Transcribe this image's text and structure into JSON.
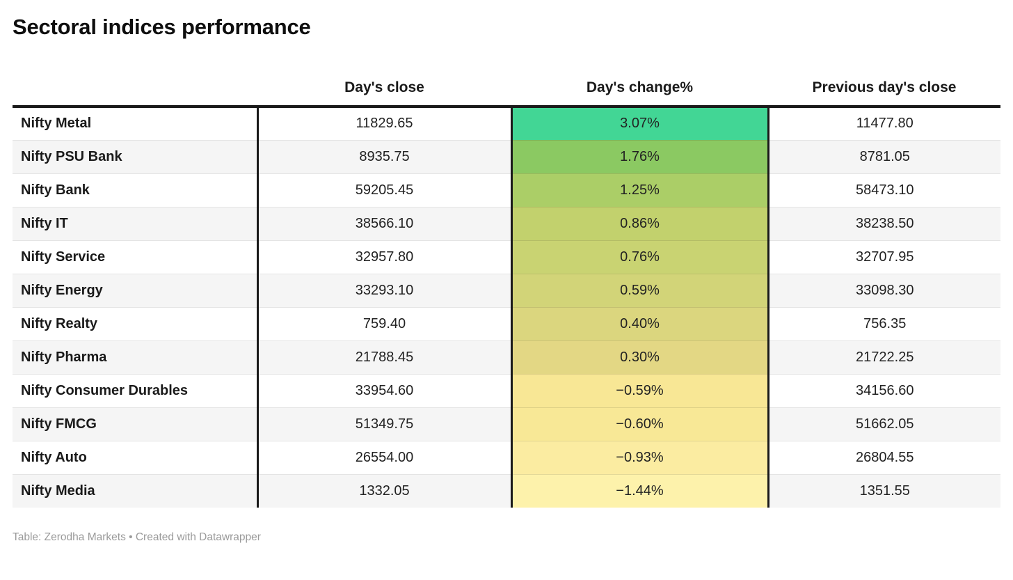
{
  "title": "Sectoral indices performance",
  "footer": {
    "attribution": "Table: Zerodha Markets • Created with Datawrapper"
  },
  "table": {
    "columns": {
      "name": "",
      "close": "Day's close",
      "change": "Day's change%",
      "prev": "Previous day's close"
    },
    "rows": [
      {
        "name": "Nifty Metal",
        "close": "11829.65",
        "change": "3.07%",
        "prev": "11477.80",
        "color": "#42d695"
      },
      {
        "name": "Nifty PSU Bank",
        "close": "8935.75",
        "change": "1.76%",
        "prev": "8781.05",
        "color": "#8bc962"
      },
      {
        "name": "Nifty Bank",
        "close": "59205.45",
        "change": "1.25%",
        "prev": "58473.10",
        "color": "#abce67"
      },
      {
        "name": "Nifty IT",
        "close": "38566.10",
        "change": "0.86%",
        "prev": "38238.50",
        "color": "#c2d16d"
      },
      {
        "name": "Nifty Service",
        "close": "32957.80",
        "change": "0.76%",
        "prev": "32707.95",
        "color": "#c9d372"
      },
      {
        "name": "Nifty Energy",
        "close": "33293.10",
        "change": "0.59%",
        "prev": "33098.30",
        "color": "#d2d478"
      },
      {
        "name": "Nifty Realty",
        "close": "759.40",
        "change": "0.40%",
        "prev": "756.35",
        "color": "#dbd67e"
      },
      {
        "name": "Nifty Pharma",
        "close": "21788.45",
        "change": "0.30%",
        "prev": "21722.25",
        "color": "#e3d784"
      },
      {
        "name": "Nifty Consumer Durables",
        "close": "33954.60",
        "change": "−0.59%",
        "prev": "34156.60",
        "color": "#f8e795"
      },
      {
        "name": "Nifty FMCG",
        "close": "51349.75",
        "change": "−0.60%",
        "prev": "51662.05",
        "color": "#f8e896"
      },
      {
        "name": "Nifty Auto",
        "close": "26554.00",
        "change": "−0.93%",
        "prev": "26804.55",
        "color": "#fbeca1"
      },
      {
        "name": "Nifty Media",
        "close": "1332.05",
        "change": "−1.44%",
        "prev": "1351.55",
        "color": "#fdf2ab"
      }
    ]
  },
  "chart_data": {
    "type": "table",
    "title": "Sectoral indices performance",
    "columns": [
      "",
      "Day's close",
      "Day's change%",
      "Previous day's close"
    ],
    "rows": [
      [
        "Nifty Metal",
        11829.65,
        3.07,
        11477.8
      ],
      [
        "Nifty PSU Bank",
        8935.75,
        1.76,
        8781.05
      ],
      [
        "Nifty Bank",
        59205.45,
        1.25,
        58473.1
      ],
      [
        "Nifty IT",
        38566.1,
        0.86,
        38238.5
      ],
      [
        "Nifty Service",
        32957.8,
        0.76,
        32707.95
      ],
      [
        "Nifty Energy",
        33293.1,
        0.59,
        33098.3
      ],
      [
        "Nifty Realty",
        759.4,
        0.4,
        756.35
      ],
      [
        "Nifty Pharma",
        21788.45,
        0.3,
        21722.25
      ],
      [
        "Nifty Consumer Durables",
        33954.6,
        -0.59,
        34156.6
      ],
      [
        "Nifty FMCG",
        51349.75,
        -0.6,
        51662.05
      ],
      [
        "Nifty Auto",
        26554.0,
        -0.93,
        26804.55
      ],
      [
        "Nifty Media",
        1332.05,
        -1.44,
        1351.55
      ]
    ],
    "heatmap_column": "Day's change%",
    "heatmap_scale": [
      "#42d695",
      "#fdf2ab"
    ],
    "source": "Table: Zerodha Markets • Created with Datawrapper"
  }
}
